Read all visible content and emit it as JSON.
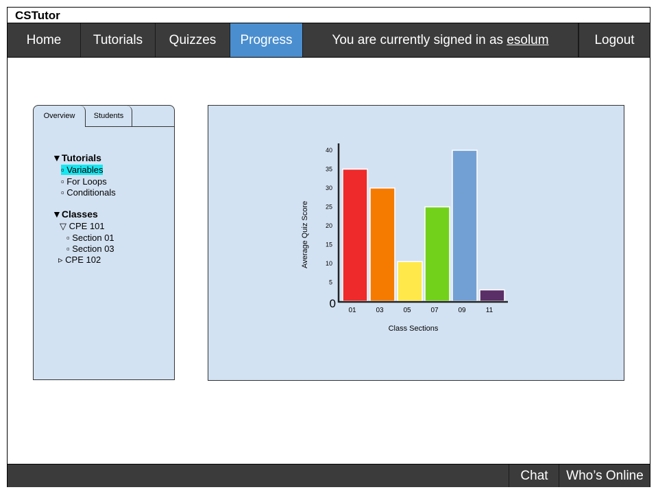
{
  "app": {
    "title": "CSTutor"
  },
  "nav": {
    "home": "Home",
    "tutorials": "Tutorials",
    "quizzes": "Quizzes",
    "progress": "Progress",
    "signed_in_prefix": "You are currently signed in as ",
    "username": "esolum",
    "logout": "Logout"
  },
  "left_panel": {
    "tabs": {
      "overview": "Overview",
      "students": "Students"
    },
    "tutorials_heading": "▼Tutorials",
    "tutorials": [
      "▫ Variables",
      "▫ For Loops",
      "▫ Conditionals"
    ],
    "classes_heading": "▼Classes",
    "classes": [
      {
        "label": "▽ CPE 101"
      },
      {
        "label": "▫ Section 01"
      },
      {
        "label": "▫ Section 03"
      },
      {
        "label": "▹ CPE 102"
      }
    ]
  },
  "footer": {
    "chat": "Chat",
    "whos_online": "Who’s Online"
  },
  "colors": {
    "nav_bg": "#3b3b3b",
    "nav_active": "#4a8ecf",
    "panel_bg": "#d3e2f2",
    "highlight": "#18e7f0"
  },
  "chart_data": {
    "type": "bar",
    "categories": [
      "01",
      "03",
      "05",
      "07",
      "09",
      "11"
    ],
    "values": [
      35,
      30,
      10.5,
      25,
      40,
      3
    ],
    "colors": [
      "#ee2a2a",
      "#f57b00",
      "#ffe84a",
      "#72d11b",
      "#73a0d4",
      "#5a2e67"
    ],
    "xlabel": "Class Sections",
    "ylabel": "Average Quiz Score",
    "yticks": [
      "5",
      "10",
      "15",
      "20",
      "25",
      "30",
      "35",
      "40"
    ],
    "origin_label": "0",
    "ylim": [
      0,
      40
    ]
  }
}
